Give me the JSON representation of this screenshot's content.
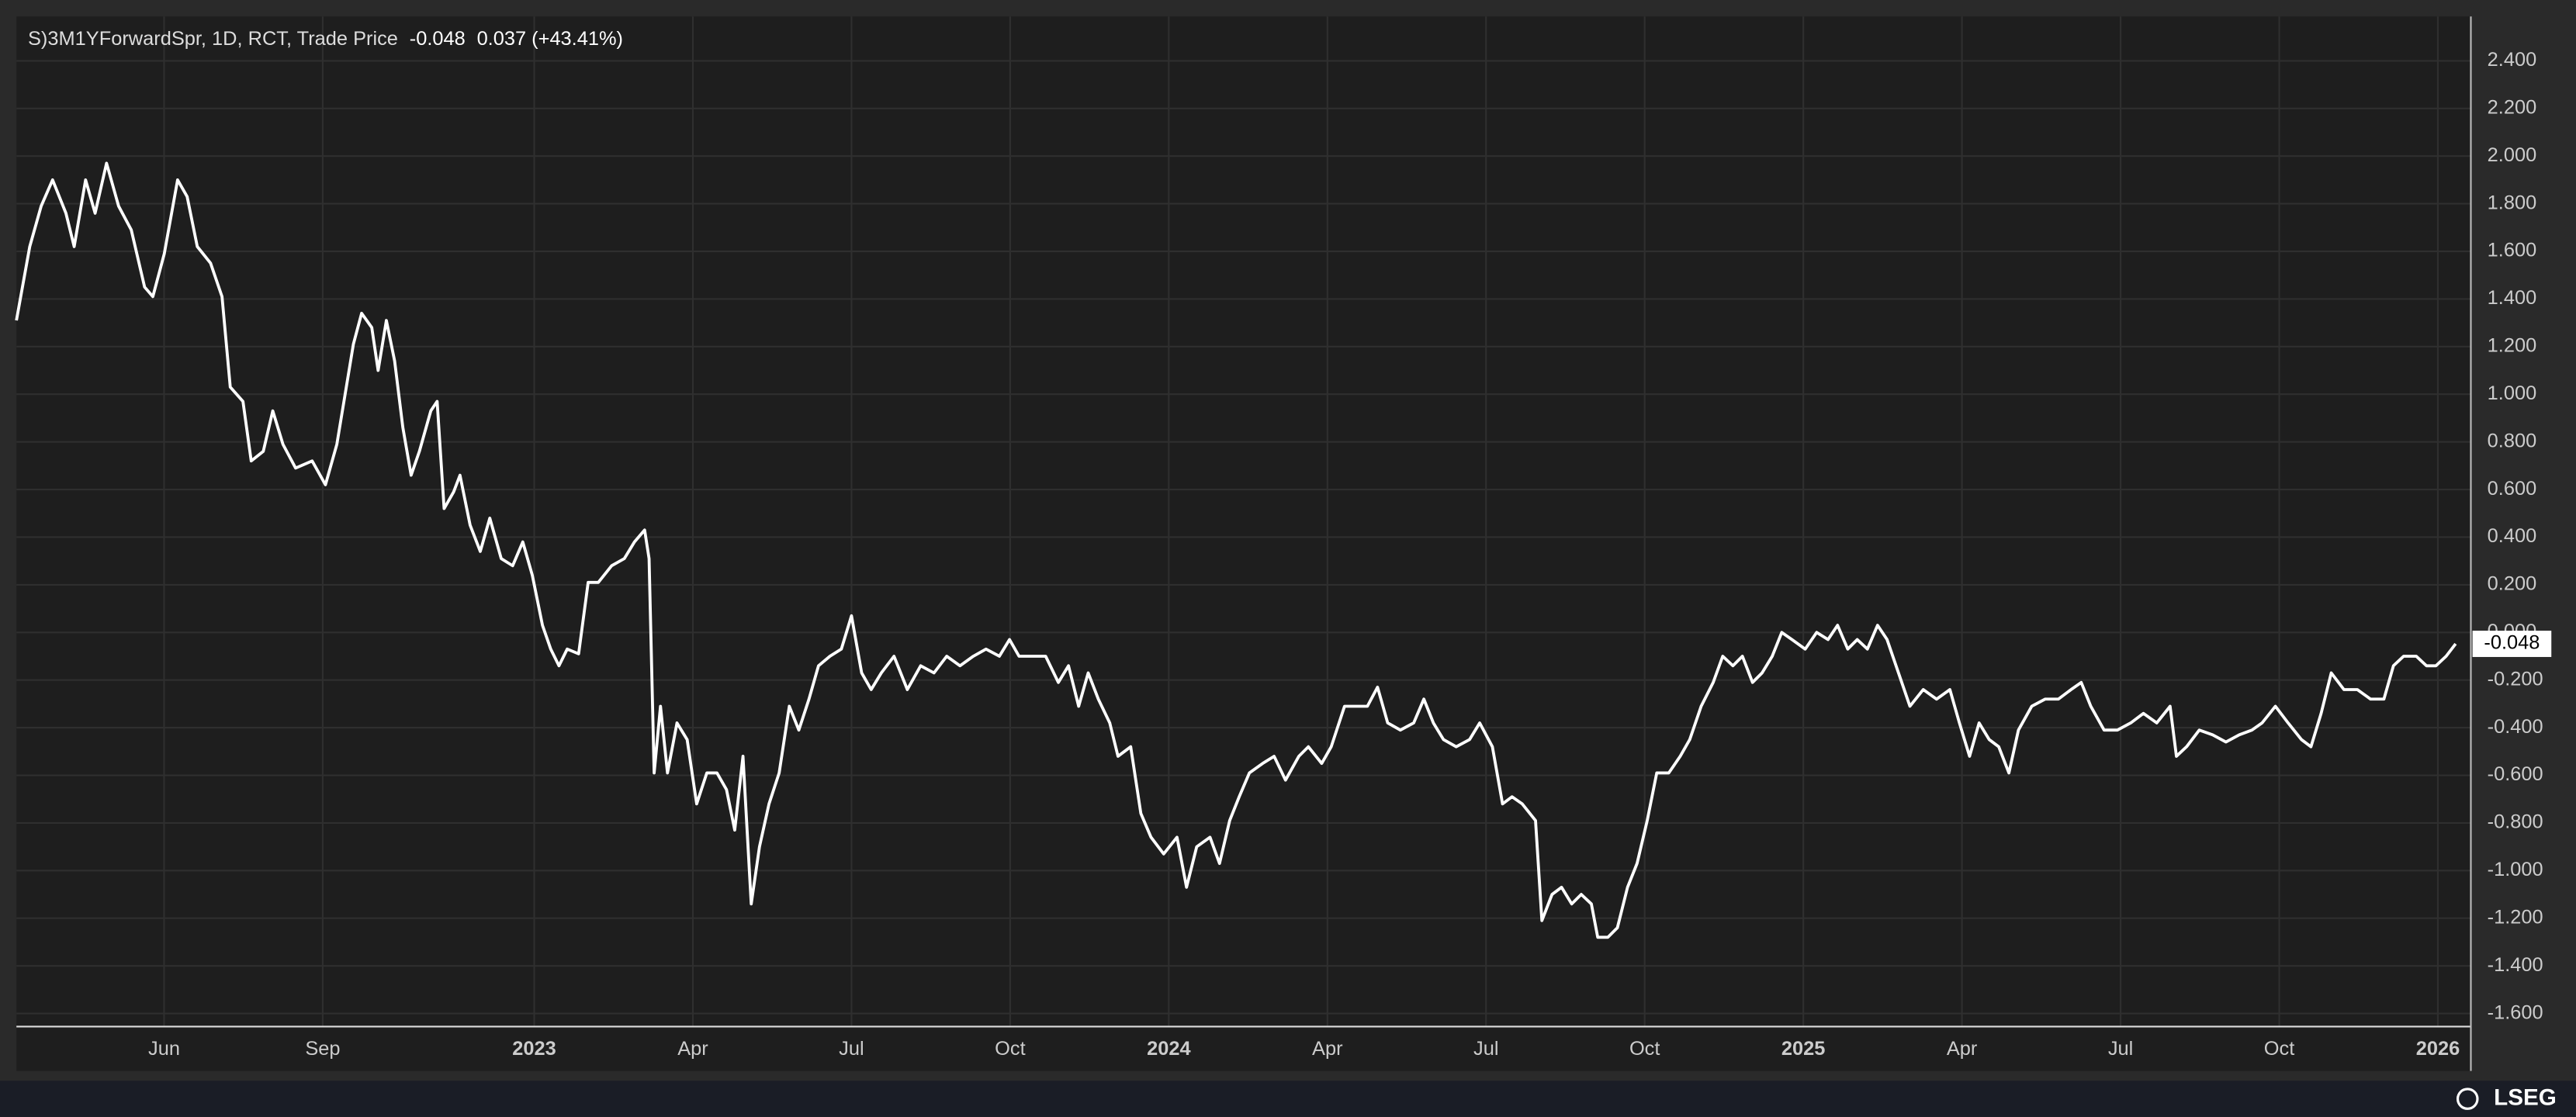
{
  "chart_data": {
    "type": "line",
    "title": "S)3M1YForwardSpr, 1D, RCT, Trade Price",
    "last_value_label": "-0.048",
    "change_label": "0.037 (+43.41%)",
    "color": "#ffffff",
    "grid": true,
    "xlim": [
      2022.184,
      2026.052
    ],
    "ylim": [
      -1.655,
      2.586
    ],
    "xticks": [
      {
        "value": 2022.4167,
        "label": "Jun"
      },
      {
        "value": 2022.6667,
        "label": "Sep"
      },
      2023,
      {
        "value": 2023.25,
        "label": "Apr"
      },
      {
        "value": 2023.5,
        "label": "Jul"
      },
      {
        "value": 2023.75,
        "label": "Oct"
      },
      2024,
      {
        "value": 2024.25,
        "label": "Apr"
      },
      {
        "value": 2024.5,
        "label": "Jul"
      },
      {
        "value": 2024.75,
        "label": "Oct"
      },
      2025,
      {
        "value": 2025.25,
        "label": "Apr"
      },
      {
        "value": 2025.5,
        "label": "Jul"
      },
      {
        "value": 2025.75,
        "label": "Oct"
      },
      2026
    ],
    "yticks": [
      {
        "value": 2.4,
        "label": "2.400"
      },
      {
        "value": 2.2,
        "label": "2.200"
      },
      {
        "value": 2.0,
        "label": "2.000"
      },
      {
        "value": 1.8,
        "label": "1.800"
      },
      {
        "value": 1.6,
        "label": "1.600"
      },
      {
        "value": 1.4,
        "label": "1.400"
      },
      {
        "value": 1.2,
        "label": "1.200"
      },
      {
        "value": 1.0,
        "label": "1.000"
      },
      {
        "value": 0.8,
        "label": "0.800"
      },
      {
        "value": 0.6,
        "label": "0.600"
      },
      {
        "value": 0.4,
        "label": "0.400"
      },
      {
        "value": 0.2,
        "label": "0.200"
      },
      {
        "value": 0,
        "label": "0.000"
      },
      {
        "value": -0.2,
        "label": "-0.200"
      },
      {
        "value": -0.4,
        "label": "-0.400"
      },
      {
        "value": -0.6,
        "label": "-0.600"
      },
      {
        "value": -0.8,
        "label": "-0.800"
      },
      {
        "value": -1.0,
        "label": "-1.000"
      },
      {
        "value": -1.2,
        "label": "-1.200"
      },
      {
        "value": -1.4,
        "label": "-1.400"
      },
      {
        "value": -1.6,
        "label": "-1.600"
      }
    ],
    "x": [
      2022.184,
      2022.205,
      2022.223,
      2022.241,
      2022.262,
      2022.275,
      2022.293,
      2022.308,
      2022.326,
      2022.345,
      2022.365,
      2022.386,
      2022.399,
      2022.417,
      2022.438,
      2022.453,
      2022.469,
      2022.49,
      2022.508,
      2022.521,
      2022.541,
      2022.554,
      2022.573,
      2022.588,
      2022.604,
      2022.624,
      2022.65,
      2022.671,
      2022.689,
      2022.702,
      2022.715,
      2022.728,
      2022.744,
      2022.754,
      2022.767,
      2022.78,
      2022.793,
      2022.806,
      2022.819,
      2022.837,
      2022.847,
      2022.858,
      2022.873,
      2022.883,
      2022.899,
      2022.915,
      2022.93,
      2022.948,
      2022.966,
      2022.982,
      2022.997,
      2023.013,
      2023.026,
      2023.039,
      2023.052,
      2023.07,
      2023.085,
      2023.101,
      2023.122,
      2023.142,
      2023.158,
      2023.174,
      2023.181,
      2023.189,
      2023.199,
      2023.21,
      2023.225,
      2023.241,
      2023.256,
      2023.272,
      2023.288,
      2023.303,
      2023.316,
      2023.329,
      2023.342,
      2023.355,
      2023.37,
      2023.386,
      2023.402,
      2023.417,
      2023.433,
      2023.448,
      2023.466,
      2023.484,
      2023.5,
      2023.516,
      2023.531,
      2023.547,
      2023.567,
      2023.588,
      2023.609,
      2023.63,
      2023.65,
      2023.671,
      2023.692,
      2023.712,
      2023.733,
      2023.749,
      2023.764,
      2023.785,
      2023.806,
      2023.826,
      2023.842,
      2023.858,
      2023.873,
      2023.889,
      2023.907,
      2023.92,
      2023.94,
      2023.956,
      2023.972,
      2023.992,
      2024.013,
      2024.028,
      2024.044,
      2024.065,
      2024.08,
      2024.096,
      2024.111,
      2024.127,
      2024.148,
      2024.166,
      2024.184,
      2024.205,
      2024.22,
      2024.241,
      2024.256,
      2024.277,
      2024.298,
      2024.313,
      2024.329,
      2024.345,
      2024.365,
      2024.386,
      2024.402,
      2024.417,
      2024.433,
      2024.453,
      2024.474,
      2024.49,
      2024.51,
      2024.526,
      2024.541,
      2024.557,
      2024.578,
      2024.588,
      2024.604,
      2024.619,
      2024.635,
      2024.65,
      2024.666,
      2024.676,
      2024.692,
      2024.707,
      2024.723,
      2024.738,
      2024.754,
      2024.769,
      2024.788,
      2024.806,
      2024.821,
      2024.839,
      2024.858,
      2024.873,
      2024.889,
      2024.904,
      2024.92,
      2024.935,
      2024.951,
      2024.966,
      2024.982,
      2025.003,
      2025.021,
      2025.039,
      2025.054,
      2025.07,
      2025.085,
      2025.101,
      2025.117,
      2025.132,
      2025.15,
      2025.168,
      2025.189,
      2025.21,
      2025.231,
      2025.246,
      2025.262,
      2025.277,
      2025.293,
      2025.308,
      2025.324,
      2025.339,
      2025.36,
      2025.381,
      2025.402,
      2025.422,
      2025.438,
      2025.453,
      2025.474,
      2025.495,
      2025.516,
      2025.536,
      2025.557,
      2025.578,
      2025.588,
      2025.604,
      2025.624,
      2025.645,
      2025.666,
      2025.687,
      2025.707,
      2025.723,
      2025.744,
      2025.764,
      2025.785,
      2025.8,
      2025.816,
      2025.832,
      2025.852,
      2025.873,
      2025.894,
      2025.915,
      2025.93,
      2025.946,
      2025.966,
      2025.982,
      2025.997,
      2026.013,
      2026.028
    ],
    "values": [
      1.31,
      1.62,
      1.79,
      1.9,
      1.76,
      1.62,
      1.9,
      1.76,
      1.97,
      1.79,
      1.69,
      1.45,
      1.41,
      1.59,
      1.9,
      1.83,
      1.62,
      1.55,
      1.41,
      1.03,
      0.97,
      0.72,
      0.76,
      0.93,
      0.79,
      0.69,
      0.72,
      0.62,
      0.79,
      1.0,
      1.21,
      1.34,
      1.28,
      1.1,
      1.31,
      1.14,
      0.86,
      0.66,
      0.76,
      0.93,
      0.97,
      0.52,
      0.59,
      0.66,
      0.45,
      0.34,
      0.48,
      0.31,
      0.28,
      0.38,
      0.24,
      0.03,
      -0.07,
      -0.14,
      -0.07,
      -0.09,
      0.21,
      0.21,
      0.28,
      0.31,
      0.38,
      0.43,
      0.31,
      -0.59,
      -0.31,
      -0.59,
      -0.38,
      -0.45,
      -0.72,
      -0.59,
      -0.59,
      -0.66,
      -0.83,
      -0.52,
      -1.14,
      -0.9,
      -0.72,
      -0.59,
      -0.31,
      -0.41,
      -0.28,
      -0.14,
      -0.1,
      -0.07,
      0.07,
      -0.17,
      -0.24,
      -0.17,
      -0.1,
      -0.24,
      -0.14,
      -0.17,
      -0.1,
      -0.14,
      -0.1,
      -0.07,
      -0.1,
      -0.03,
      -0.1,
      -0.1,
      -0.1,
      -0.21,
      -0.14,
      -0.31,
      -0.17,
      -0.28,
      -0.38,
      -0.52,
      -0.48,
      -0.76,
      -0.86,
      -0.93,
      -0.86,
      -1.07,
      -0.9,
      -0.86,
      -0.97,
      -0.79,
      -0.69,
      -0.59,
      -0.55,
      -0.52,
      -0.62,
      -0.52,
      -0.48,
      -0.55,
      -0.48,
      -0.31,
      -0.31,
      -0.31,
      -0.23,
      -0.38,
      -0.41,
      -0.38,
      -0.28,
      -0.38,
      -0.45,
      -0.48,
      -0.45,
      -0.38,
      -0.48,
      -0.72,
      -0.69,
      -0.72,
      -0.79,
      -1.21,
      -1.1,
      -1.07,
      -1.14,
      -1.1,
      -1.14,
      -1.28,
      -1.28,
      -1.24,
      -1.07,
      -0.97,
      -0.79,
      -0.59,
      -0.59,
      -0.52,
      -0.45,
      -0.31,
      -0.21,
      -0.1,
      -0.14,
      -0.1,
      -0.21,
      -0.17,
      -0.1,
      0.0,
      -0.03,
      -0.07,
      0.0,
      -0.03,
      0.03,
      -0.07,
      -0.03,
      -0.07,
      0.03,
      -0.03,
      -0.17,
      -0.31,
      -0.24,
      -0.28,
      -0.24,
      -0.38,
      -0.52,
      -0.38,
      -0.45,
      -0.48,
      -0.59,
      -0.41,
      -0.31,
      -0.28,
      -0.28,
      -0.24,
      -0.21,
      -0.31,
      -0.41,
      -0.41,
      -0.38,
      -0.34,
      -0.38,
      -0.31,
      -0.52,
      -0.48,
      -0.41,
      -0.43,
      -0.46,
      -0.43,
      -0.41,
      -0.38,
      -0.31,
      -0.38,
      -0.45,
      -0.48,
      -0.34,
      -0.17,
      -0.24,
      -0.24,
      -0.28,
      -0.28,
      -0.14,
      -0.1,
      -0.1,
      -0.14,
      -0.14,
      -0.1,
      -0.048
    ]
  },
  "footer": {
    "brand": "LSEG"
  }
}
